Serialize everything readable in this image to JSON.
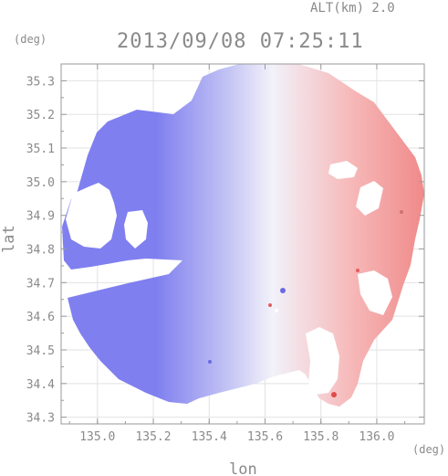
{
  "header": {
    "altitude_label": "ALT(km) 2.0",
    "timestamp": "2013/09/08 07:25:11"
  },
  "chart_data": {
    "type": "heatmap",
    "title": "2013/09/08 07:25:11",
    "xlabel": "lon",
    "ylabel": "lat",
    "x_unit": "(deg)",
    "y_unit": "(deg)",
    "xlim": [
      134.87,
      136.17
    ],
    "ylim": [
      34.28,
      35.35
    ],
    "x_ticks": [
      135.0,
      135.2,
      135.4,
      135.6,
      135.8,
      136.0
    ],
    "x_tick_labels": [
      "135.0",
      "135.2",
      "135.4",
      "135.6",
      "135.8",
      "136.0"
    ],
    "y_ticks": [
      34.3,
      34.4,
      34.5,
      34.6,
      34.7,
      34.8,
      34.9,
      35.0,
      35.1,
      35.2,
      35.3
    ],
    "y_tick_labels": [
      "34.3",
      "34.4",
      "34.5",
      "34.6",
      "34.7",
      "34.8",
      "34.9",
      "35.0",
      "35.1",
      "35.2",
      "35.3"
    ],
    "grid": true,
    "colors": {
      "negative": "#7f7ff0",
      "neutral": "#f2f2fa",
      "positive": "#f08a8a",
      "axis": "#9a9a9a",
      "grid": "#e2e2e2"
    }
  }
}
